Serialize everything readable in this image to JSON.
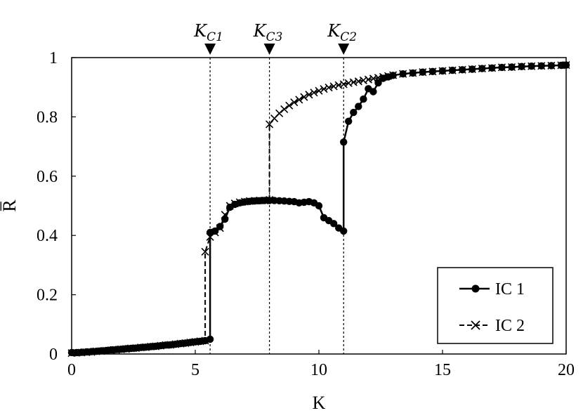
{
  "chart_data": {
    "type": "line",
    "xlabel": "K",
    "ylabel": "R̅",
    "xlim": [
      0,
      20
    ],
    "ylim": [
      0,
      1
    ],
    "xticks": [
      0,
      5,
      10,
      15,
      20
    ],
    "yticks": [
      0,
      0.2,
      0.4,
      0.6,
      0.8,
      1
    ],
    "xtick_labels": [
      "0",
      "5",
      "10",
      "15",
      "20"
    ],
    "ytick_labels": [
      "0",
      "0.2",
      "0.4",
      "0.6",
      "0.8",
      "1"
    ],
    "grid": false,
    "legend_position": "bottom-right",
    "vlines": [
      {
        "name": "K",
        "sub": "C1",
        "x": 5.6
      },
      {
        "name": "K",
        "sub": "C3",
        "x": 8.0
      },
      {
        "name": "K",
        "sub": "C2",
        "x": 11.0
      }
    ],
    "series": [
      {
        "name": "IC 1",
        "style": "solid",
        "marker": "circle",
        "color": "#000000",
        "x": [
          0,
          0.2,
          0.4,
          0.6,
          0.8,
          1.0,
          1.2,
          1.4,
          1.6,
          1.8,
          2.0,
          2.2,
          2.4,
          2.6,
          2.8,
          3.0,
          3.2,
          3.4,
          3.6,
          3.8,
          4.0,
          4.2,
          4.4,
          4.6,
          4.8,
          5.0,
          5.2,
          5.4,
          5.6,
          5.6,
          5.8,
          6.0,
          6.2,
          6.4,
          6.6,
          6.8,
          7.0,
          7.2,
          7.4,
          7.6,
          7.8,
          8.0,
          8.2,
          8.4,
          8.6,
          8.8,
          9.0,
          9.2,
          9.4,
          9.6,
          9.8,
          10.0,
          10.2,
          10.4,
          10.6,
          10.8,
          11.0,
          11.0,
          11.2,
          11.4,
          11.6,
          11.8,
          12.0,
          12.2,
          12.4,
          12.6,
          12.8,
          13.0,
          13.4,
          13.8,
          14.2,
          14.6,
          15.0,
          15.4,
          15.8,
          16.2,
          16.6,
          17.0,
          17.4,
          17.8,
          18.2,
          18.6,
          19.0,
          19.4,
          19.8,
          20.0
        ],
        "y": [
          0.005,
          0.005,
          0.006,
          0.007,
          0.008,
          0.009,
          0.011,
          0.012,
          0.014,
          0.015,
          0.016,
          0.018,
          0.019,
          0.02,
          0.022,
          0.023,
          0.025,
          0.026,
          0.028,
          0.03,
          0.031,
          0.033,
          0.035,
          0.037,
          0.039,
          0.041,
          0.043,
          0.045,
          0.05,
          0.41,
          0.415,
          0.43,
          0.455,
          0.495,
          0.505,
          0.51,
          0.513,
          0.515,
          0.516,
          0.517,
          0.518,
          0.518,
          0.518,
          0.517,
          0.516,
          0.515,
          0.514,
          0.51,
          0.512,
          0.514,
          0.51,
          0.5,
          0.46,
          0.45,
          0.44,
          0.425,
          0.415,
          0.715,
          0.785,
          0.815,
          0.835,
          0.86,
          0.895,
          0.885,
          0.915,
          0.93,
          0.935,
          0.94,
          0.945,
          0.948,
          0.951,
          0.953,
          0.955,
          0.957,
          0.959,
          0.961,
          0.963,
          0.965,
          0.967,
          0.968,
          0.97,
          0.971,
          0.972,
          0.973,
          0.974,
          0.975
        ]
      },
      {
        "name": "IC 2",
        "style": "dashed",
        "marker": "x",
        "color": "#000000",
        "x": [
          0,
          0.2,
          0.4,
          0.6,
          0.8,
          1.0,
          1.2,
          1.4,
          1.6,
          1.8,
          2.0,
          2.2,
          2.4,
          2.6,
          2.8,
          3.0,
          3.2,
          3.4,
          3.6,
          3.8,
          4.0,
          4.2,
          4.4,
          4.6,
          4.8,
          5.0,
          5.2,
          5.4,
          5.4,
          5.6,
          5.8,
          6.0,
          6.2,
          6.4,
          6.6,
          6.8,
          7.0,
          7.2,
          7.4,
          7.6,
          7.8,
          8.0,
          8.0,
          8.2,
          8.4,
          8.6,
          8.8,
          9.0,
          9.2,
          9.4,
          9.6,
          9.8,
          10.0,
          10.2,
          10.4,
          10.6,
          10.8,
          11.0,
          11.2,
          11.4,
          11.6,
          11.8,
          12.0,
          12.2,
          12.4,
          12.6,
          12.8,
          13.0,
          13.4,
          13.8,
          14.2,
          14.6,
          15.0,
          15.4,
          15.8,
          16.2,
          16.6,
          17.0,
          17.4,
          17.8,
          18.2,
          18.6,
          19.0,
          19.4,
          19.8,
          20.0
        ],
        "y": [
          0.003,
          0.004,
          0.005,
          0.006,
          0.007,
          0.009,
          0.01,
          0.011,
          0.013,
          0.014,
          0.016,
          0.017,
          0.019,
          0.02,
          0.022,
          0.023,
          0.025,
          0.026,
          0.028,
          0.03,
          0.031,
          0.033,
          0.035,
          0.037,
          0.039,
          0.041,
          0.043,
          0.045,
          0.345,
          0.395,
          0.41,
          0.425,
          0.47,
          0.5,
          0.508,
          0.512,
          0.514,
          0.516,
          0.517,
          0.518,
          0.518,
          0.52,
          0.775,
          0.795,
          0.812,
          0.826,
          0.838,
          0.849,
          0.858,
          0.867,
          0.875,
          0.882,
          0.888,
          0.894,
          0.899,
          0.903,
          0.907,
          0.91,
          0.914,
          0.917,
          0.92,
          0.923,
          0.926,
          0.929,
          0.932,
          0.935,
          0.938,
          0.941,
          0.945,
          0.948,
          0.951,
          0.953,
          0.955,
          0.957,
          0.959,
          0.961,
          0.963,
          0.965,
          0.967,
          0.968,
          0.97,
          0.971,
          0.972,
          0.973,
          0.974,
          0.975
        ]
      }
    ]
  }
}
